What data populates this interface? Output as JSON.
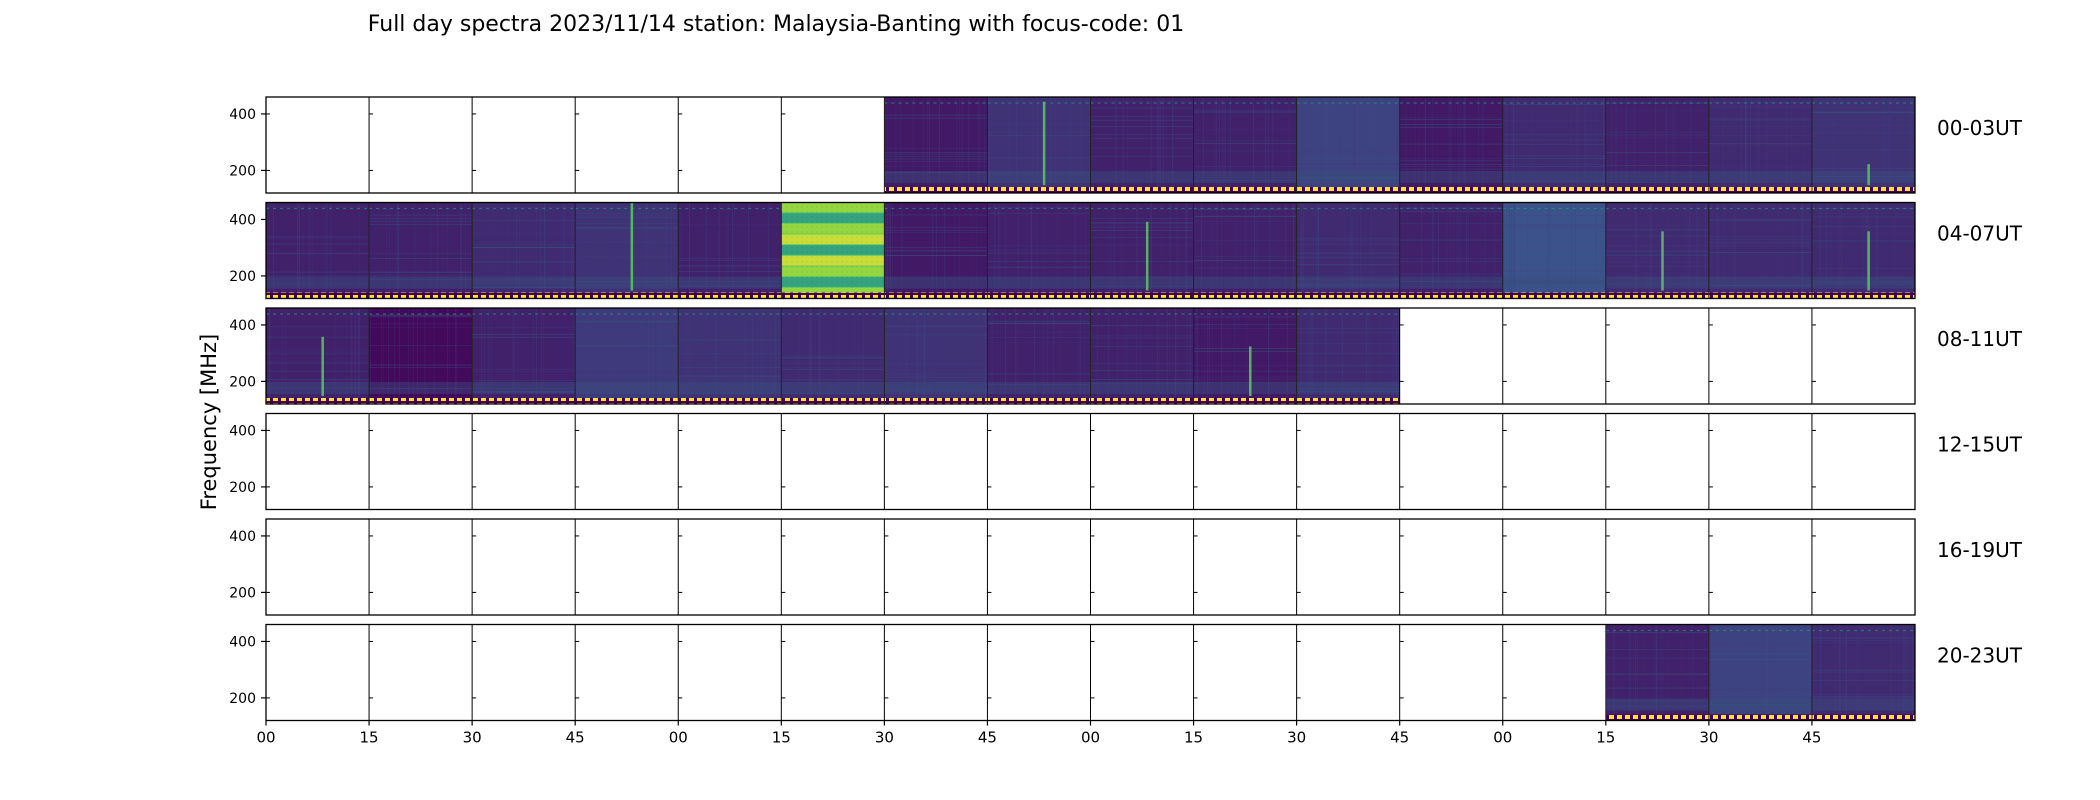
{
  "chart_data": {
    "type": "heatmap",
    "title": "Full day spectra 2023/11/14 station: Malaysia-Banting with focus-code: 01",
    "ylabel": "Frequency [MHz]",
    "xlabel": "",
    "ylim": [
      120,
      460
    ],
    "y_ticks": [
      200,
      400
    ],
    "x_tick_labels": [
      "00",
      "15",
      "30",
      "45",
      "00",
      "15",
      "30",
      "45",
      "00",
      "15",
      "30",
      "45",
      "00",
      "15",
      "30",
      "45"
    ],
    "panels_per_row": 16,
    "minutes_per_panel": 15,
    "colormap": "viridis",
    "colors": {
      "background": "#440154",
      "low": "#472d7b",
      "mid": "#3b528b",
      "teal": "#21918c",
      "green": "#5ec962",
      "bright": "#fde725",
      "axis": "#000000"
    },
    "rows": [
      {
        "label": "00-03UT",
        "present": [
          0,
          0,
          0,
          0,
          0,
          0,
          1,
          1,
          1,
          1,
          1,
          1,
          1,
          1,
          1,
          1
        ],
        "intensity": [
          0,
          0,
          0,
          0,
          0,
          0,
          0.15,
          0.3,
          0.2,
          0.2,
          0.4,
          0.15,
          0.25,
          0.2,
          0.25,
          0.3
        ],
        "vlines": [
          null,
          null,
          null,
          null,
          null,
          null,
          null,
          0.95,
          null,
          null,
          null,
          null,
          null,
          null,
          null,
          0.3
        ]
      },
      {
        "label": "04-07UT",
        "present": [
          1,
          1,
          1,
          1,
          1,
          1,
          1,
          1,
          1,
          1,
          1,
          1,
          1,
          1,
          1,
          1
        ],
        "intensity": [
          0.2,
          0.2,
          0.25,
          0.3,
          0.2,
          0.85,
          0.15,
          0.2,
          0.2,
          0.2,
          0.25,
          0.2,
          0.5,
          0.25,
          0.25,
          0.25
        ],
        "vlines": [
          null,
          null,
          null,
          1.0,
          null,
          null,
          null,
          null,
          0.8,
          null,
          null,
          null,
          null,
          0.7,
          null,
          0.7
        ]
      },
      {
        "label": "08-11UT",
        "present": [
          1,
          1,
          1,
          1,
          1,
          1,
          1,
          1,
          1,
          1,
          1,
          0,
          0,
          0,
          0,
          0
        ],
        "intensity": [
          0.2,
          0.05,
          0.2,
          0.35,
          0.3,
          0.25,
          0.3,
          0.2,
          0.2,
          0.15,
          0.25,
          0,
          0,
          0,
          0,
          0
        ],
        "vlines": [
          0.7,
          null,
          null,
          null,
          null,
          null,
          null,
          null,
          null,
          0.6,
          null,
          null,
          null,
          null,
          null,
          null
        ]
      },
      {
        "label": "12-15UT",
        "present": [
          0,
          0,
          0,
          0,
          0,
          0,
          0,
          0,
          0,
          0,
          0,
          0,
          0,
          0,
          0,
          0
        ],
        "intensity": [
          0,
          0,
          0,
          0,
          0,
          0,
          0,
          0,
          0,
          0,
          0,
          0,
          0,
          0,
          0,
          0
        ],
        "vlines": [
          null,
          null,
          null,
          null,
          null,
          null,
          null,
          null,
          null,
          null,
          null,
          null,
          null,
          null,
          null,
          null
        ]
      },
      {
        "label": "16-19UT",
        "present": [
          0,
          0,
          0,
          0,
          0,
          0,
          0,
          0,
          0,
          0,
          0,
          0,
          0,
          0,
          0,
          0
        ],
        "intensity": [
          0,
          0,
          0,
          0,
          0,
          0,
          0,
          0,
          0,
          0,
          0,
          0,
          0,
          0,
          0,
          0
        ],
        "vlines": [
          null,
          null,
          null,
          null,
          null,
          null,
          null,
          null,
          null,
          null,
          null,
          null,
          null,
          null,
          null,
          null
        ]
      },
      {
        "label": "20-23UT",
        "present": [
          0,
          0,
          0,
          0,
          0,
          0,
          0,
          0,
          0,
          0,
          0,
          0,
          0,
          1,
          1,
          1
        ],
        "intensity": [
          0,
          0,
          0,
          0,
          0,
          0,
          0,
          0,
          0,
          0,
          0,
          0,
          0,
          0.2,
          0.4,
          0.25
        ],
        "vlines": [
          null,
          null,
          null,
          null,
          null,
          null,
          null,
          null,
          null,
          null,
          null,
          null,
          null,
          null,
          null,
          null
        ]
      }
    ]
  }
}
